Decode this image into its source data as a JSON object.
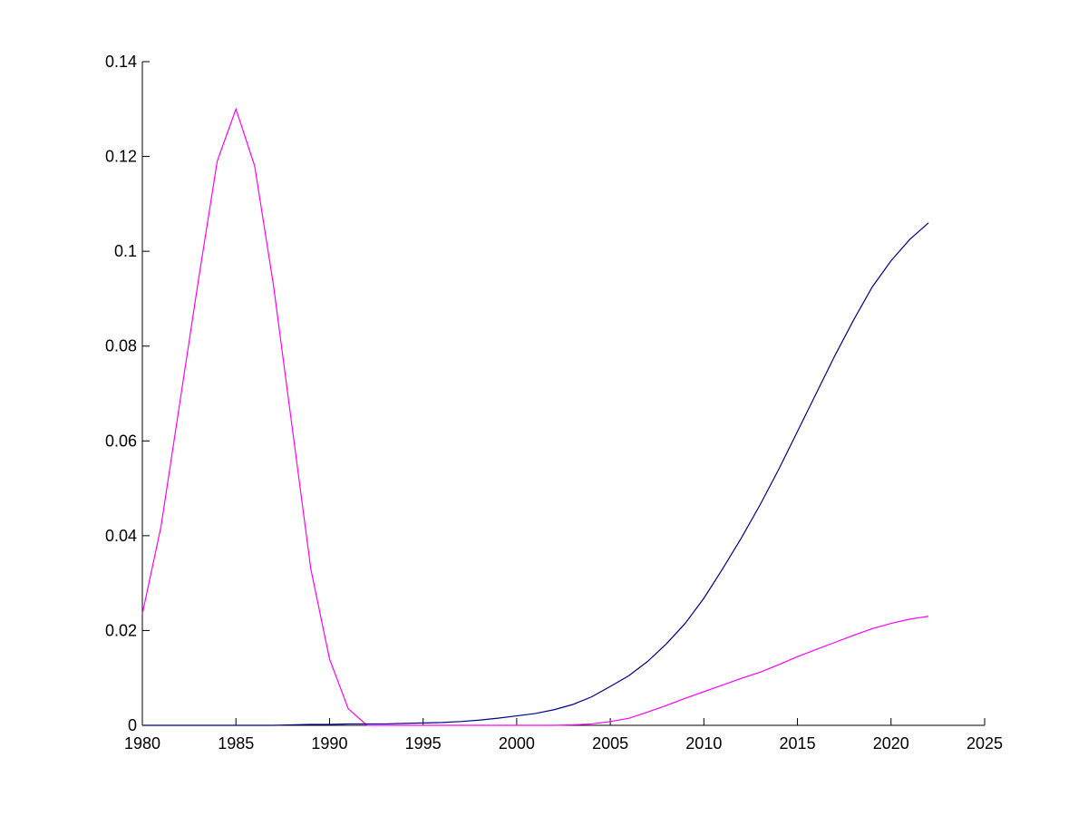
{
  "chart_data": {
    "type": "line",
    "x": [
      1980,
      1981,
      1982,
      1983,
      1984,
      1985,
      1986,
      1987,
      1988,
      1989,
      1990,
      1991,
      1992,
      1993,
      1994,
      1995,
      1996,
      1997,
      1998,
      1999,
      2000,
      2001,
      2002,
      2003,
      2004,
      2005,
      2006,
      2007,
      2008,
      2009,
      2010,
      2011,
      2012,
      2013,
      2014,
      2015,
      2016,
      2017,
      2018,
      2019,
      2020,
      2021,
      2022
    ],
    "series": [
      {
        "color": "#ff00ff",
        "values": [
          0.0235,
          0.042,
          0.068,
          0.094,
          0.119,
          0.13,
          0.118,
          0.093,
          0.063,
          0.033,
          0.014,
          0.0035,
          0,
          0,
          0,
          0,
          0,
          0,
          0,
          0,
          0,
          0,
          0,
          0.0001,
          0.0003,
          0.0008,
          0.0015,
          0.0028,
          0.0042,
          0.0057,
          0.0071,
          0.0085,
          0.0099,
          0.0112,
          0.0128,
          0.0145,
          0.016,
          0.0175,
          0.019,
          0.0204,
          0.0215,
          0.0224,
          0.023
        ]
      },
      {
        "color": "#00008b",
        "values": [
          0,
          0,
          0,
          0,
          0,
          0,
          0,
          0,
          0.0001,
          0.0002,
          0.0002,
          0.0003,
          0.0003,
          0.0003,
          0.0004,
          0.0005,
          0.0006,
          0.0008,
          0.0011,
          0.0015,
          0.002,
          0.0025,
          0.0033,
          0.0044,
          0.006,
          0.0082,
          0.0105,
          0.0135,
          0.0172,
          0.0215,
          0.0268,
          0.033,
          0.0395,
          0.0465,
          0.054,
          0.062,
          0.07,
          0.078,
          0.0855,
          0.0925,
          0.098,
          0.1025,
          0.106
        ]
      }
    ],
    "xlim": [
      1980,
      2025
    ],
    "xticks": [
      1980,
      1985,
      1990,
      1995,
      2000,
      2005,
      2010,
      2015,
      2020,
      2025
    ],
    "ylim": [
      0,
      0.14
    ],
    "yticks": [
      0,
      0.02,
      0.04,
      0.06,
      0.08,
      0.1,
      0.12,
      0.14
    ]
  }
}
